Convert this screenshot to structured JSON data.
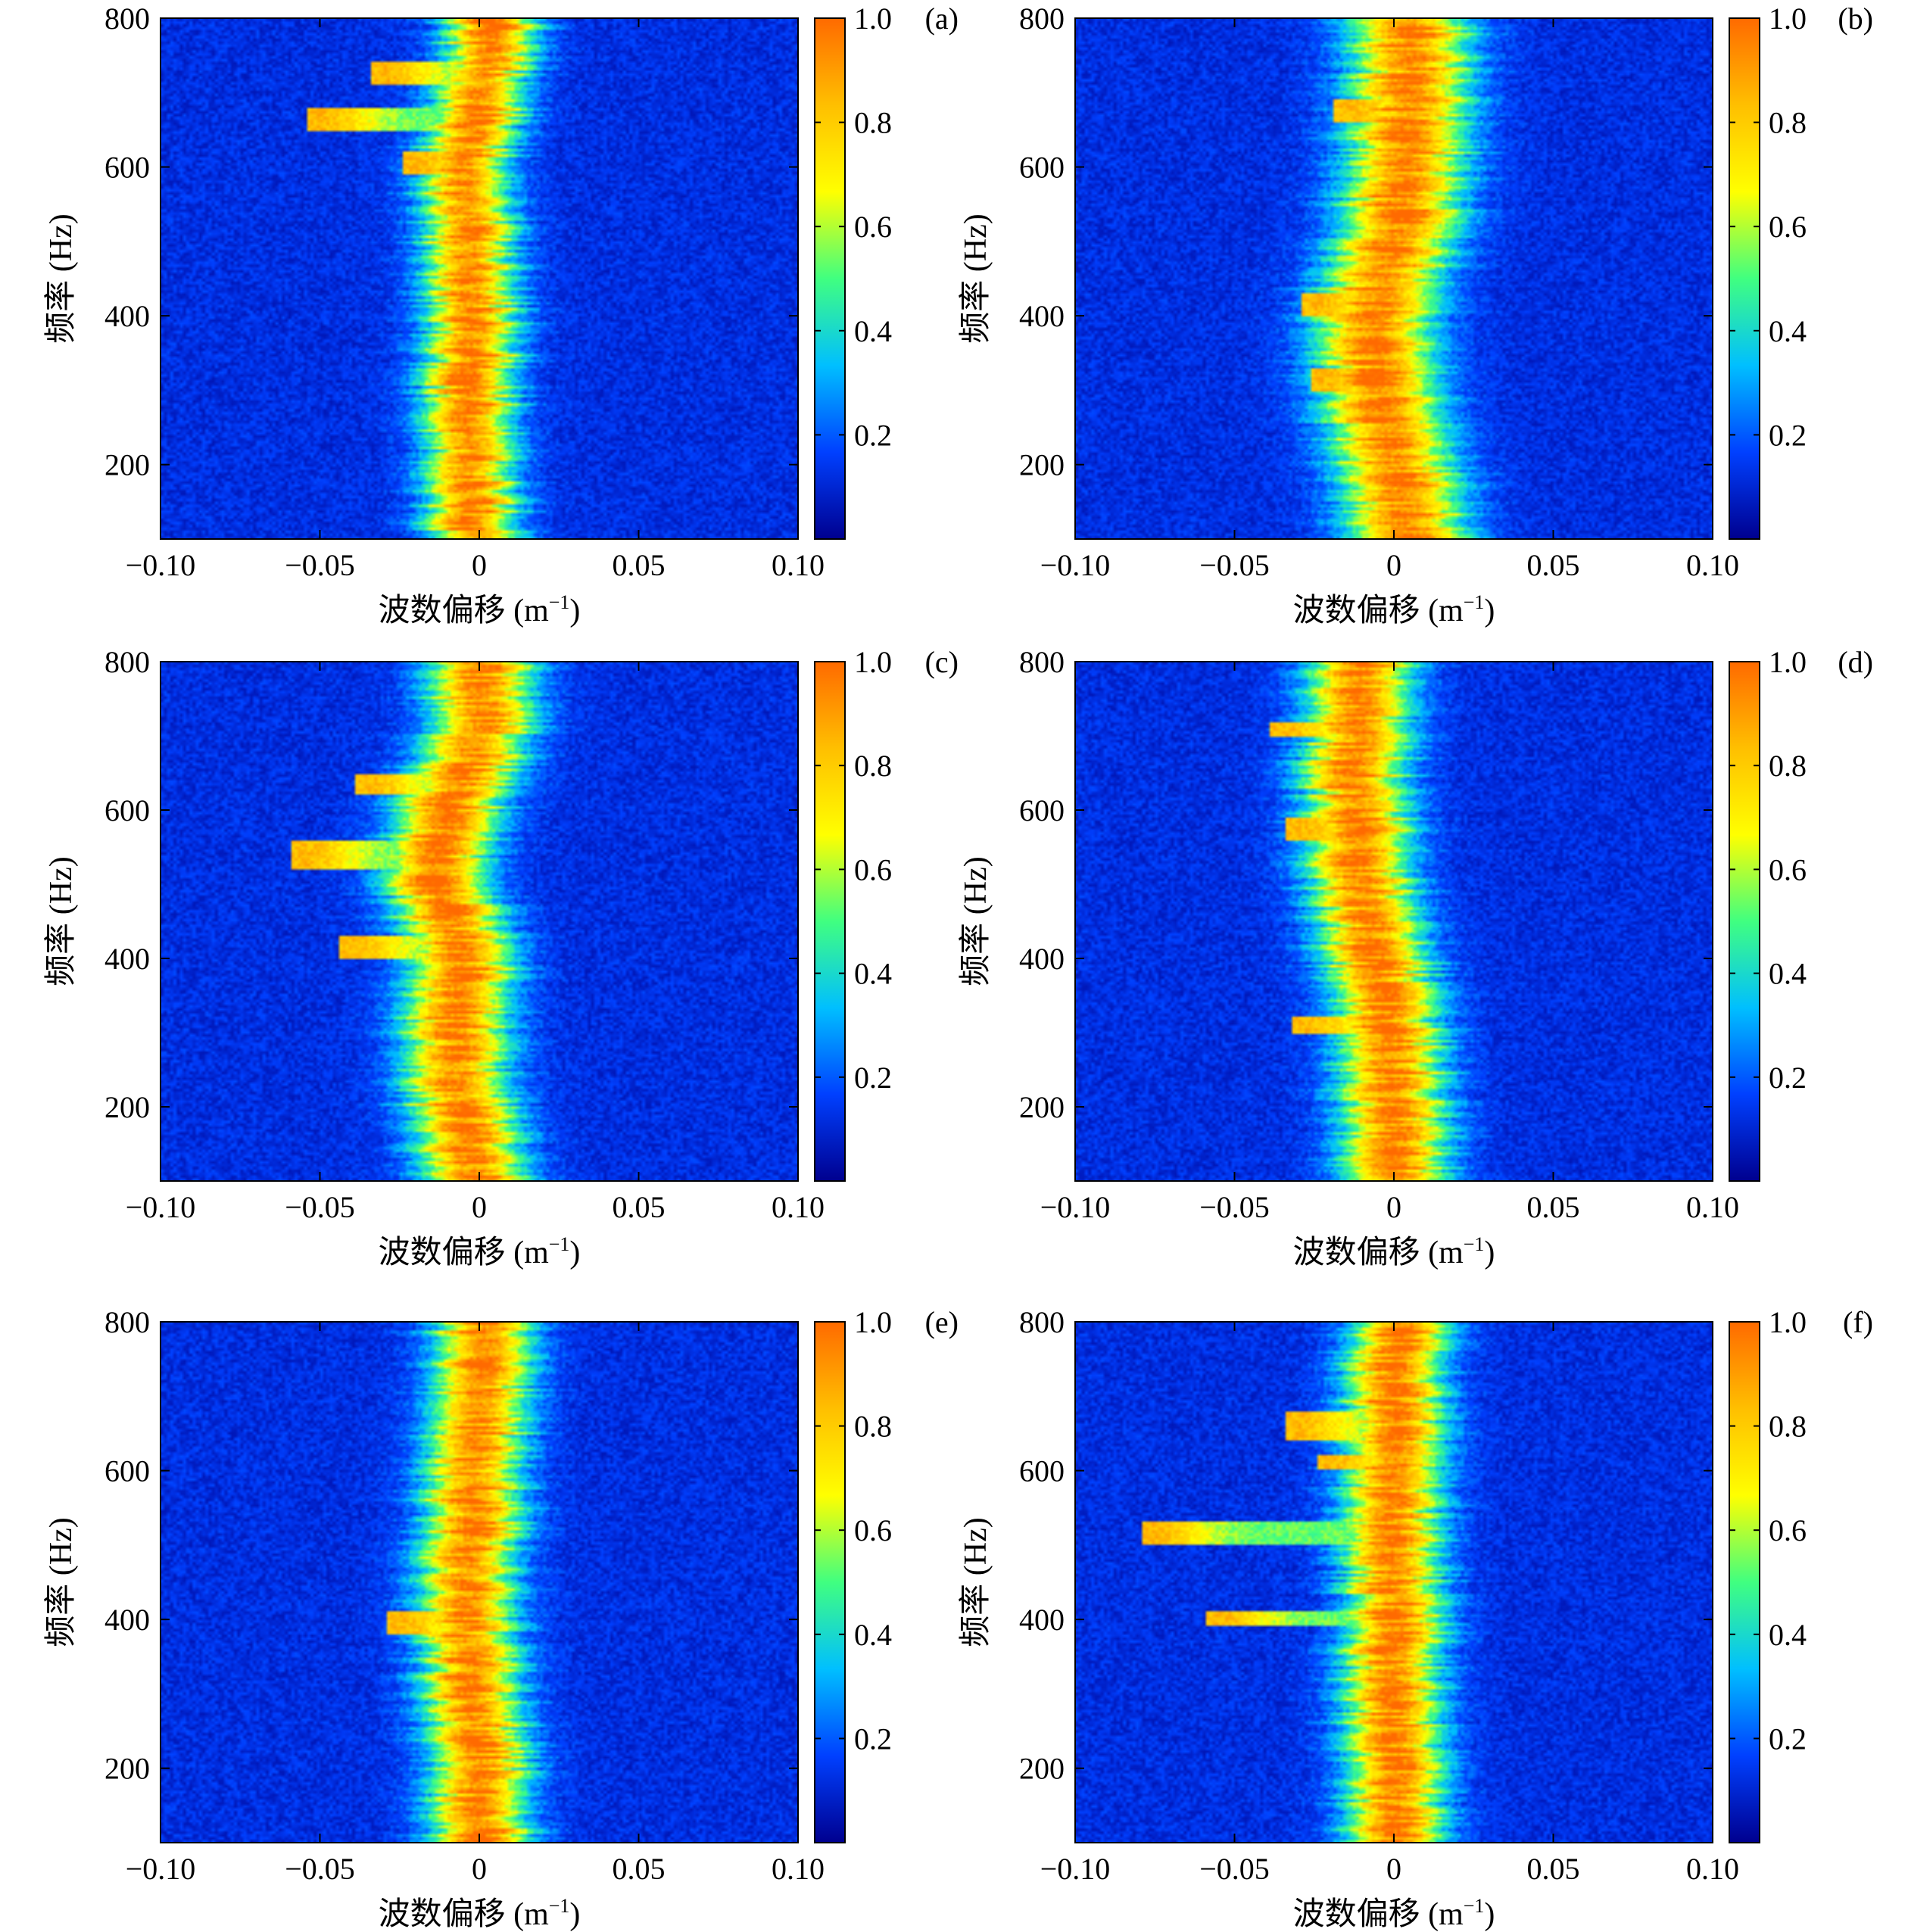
{
  "figure": {
    "colormap": [
      "#00008f",
      "#0040ff",
      "#00bfff",
      "#40ff80",
      "#ffff00",
      "#ffbf00",
      "#ff6a00"
    ],
    "frame_color": "#000000"
  },
  "chart_data": [
    {
      "type": "heatmap",
      "panel_label": "(a)",
      "xlabel": "波数偏移 (m",
      "xlabel_sup": "−1",
      "xlabel_tail": ")",
      "ylabel": "频率 (Hz)",
      "xlim": [
        -0.1,
        0.1
      ],
      "ylim": [
        100,
        800
      ],
      "xticks": [
        -0.1,
        -0.05,
        0,
        0.05,
        0.1
      ],
      "xtick_labels": [
        "−0.10",
        "−0.05",
        "0",
        "0.05",
        "0.10"
      ],
      "yticks": [
        200,
        400,
        600,
        800
      ],
      "ytick_labels": [
        "200",
        "400",
        "600",
        "800"
      ],
      "colorbar": {
        "range": [
          0,
          1.0
        ],
        "ticks": [
          0.2,
          0.4,
          0.6,
          0.8,
          1.0
        ],
        "tick_labels": [
          "0.2",
          "0.4",
          "0.6",
          "0.8",
          "1.0"
        ]
      },
      "ridge": [
        [
          100,
          -0.002
        ],
        [
          200,
          -0.003
        ],
        [
          300,
          -0.003
        ],
        [
          400,
          -0.002
        ],
        [
          500,
          -0.004
        ],
        [
          600,
          -0.005
        ],
        [
          700,
          0.0
        ],
        [
          800,
          0.004
        ]
      ],
      "ridge_halfwidth": 0.012,
      "branches": [
        [
          710,
          740,
          -0.03
        ],
        [
          650,
          680,
          -0.05
        ],
        [
          590,
          620,
          -0.02
        ]
      ]
    },
    {
      "type": "heatmap",
      "panel_label": "(b)",
      "xlabel": "波数偏移 (m",
      "xlabel_sup": "−1",
      "xlabel_tail": ")",
      "ylabel": "频率 (Hz)",
      "xlim": [
        -0.1,
        0.1
      ],
      "ylim": [
        100,
        800
      ],
      "xticks": [
        -0.1,
        -0.05,
        0,
        0.05,
        0.1
      ],
      "xtick_labels": [
        "−0.10",
        "−0.05",
        "0",
        "0.05",
        "0.10"
      ],
      "yticks": [
        200,
        400,
        600,
        800
      ],
      "ytick_labels": [
        "200",
        "400",
        "600",
        "800"
      ],
      "colorbar": {
        "range": [
          0,
          1.0
        ],
        "ticks": [
          0.2,
          0.4,
          0.6,
          0.8,
          1.0
        ],
        "tick_labels": [
          "0.2",
          "0.4",
          "0.6",
          "0.8",
          "1.0"
        ]
      },
      "ridge": [
        [
          100,
          0.004
        ],
        [
          200,
          0.0
        ],
        [
          300,
          -0.005
        ],
        [
          400,
          -0.006
        ],
        [
          500,
          0.0
        ],
        [
          600,
          0.004
        ],
        [
          700,
          0.005
        ],
        [
          800,
          0.005
        ]
      ],
      "ridge_halfwidth": 0.016,
      "branches": [
        [
          400,
          430,
          -0.025
        ],
        [
          300,
          330,
          -0.022
        ],
        [
          660,
          690,
          -0.015
        ]
      ]
    },
    {
      "type": "heatmap",
      "panel_label": "(c)",
      "xlabel": "波数偏移 (m",
      "xlabel_sup": "−1",
      "xlabel_tail": ")",
      "ylabel": "频率 (Hz)",
      "xlim": [
        -0.1,
        0.1
      ],
      "ylim": [
        100,
        800
      ],
      "xticks": [
        -0.1,
        -0.05,
        0,
        0.05,
        0.1
      ],
      "xtick_labels": [
        "−0.10",
        "−0.05",
        "0",
        "0.05",
        "0.10"
      ],
      "yticks": [
        200,
        400,
        600,
        800
      ],
      "ytick_labels": [
        "200",
        "400",
        "600",
        "800"
      ],
      "colorbar": {
        "range": [
          0,
          1.0
        ],
        "ticks": [
          0.2,
          0.4,
          0.6,
          0.8,
          1.0
        ],
        "tick_labels": [
          "0.2",
          "0.4",
          "0.6",
          "0.8",
          "1.0"
        ]
      },
      "ridge": [
        [
          100,
          -0.001
        ],
        [
          200,
          -0.006
        ],
        [
          300,
          -0.008
        ],
        [
          400,
          -0.004
        ],
        [
          500,
          -0.014
        ],
        [
          600,
          -0.01
        ],
        [
          700,
          0.0
        ],
        [
          800,
          0.0
        ]
      ],
      "ridge_halfwidth": 0.014,
      "branches": [
        [
          520,
          560,
          -0.055
        ],
        [
          400,
          430,
          -0.04
        ],
        [
          620,
          650,
          -0.035
        ]
      ]
    },
    {
      "type": "heatmap",
      "panel_label": "(d)",
      "xlabel": "波数偏移 (m",
      "xlabel_sup": "−1",
      "xlabel_tail": ")",
      "ylabel": "频率 (Hz)",
      "xlim": [
        -0.1,
        0.1
      ],
      "ylim": [
        100,
        800
      ],
      "xticks": [
        -0.1,
        -0.05,
        0,
        0.05,
        0.1
      ],
      "xtick_labels": [
        "−0.10",
        "−0.05",
        "0",
        "0.05",
        "0.10"
      ],
      "yticks": [
        200,
        400,
        600,
        800
      ],
      "ytick_labels": [
        "200",
        "400",
        "600",
        "800"
      ],
      "colorbar": {
        "range": [
          0,
          1.0
        ],
        "ticks": [
          0.2,
          0.4,
          0.6,
          0.8,
          1.0
        ],
        "tick_labels": [
          "0.2",
          "0.4",
          "0.6",
          "0.8",
          "1.0"
        ]
      },
      "ridge": [
        [
          100,
          0.0
        ],
        [
          200,
          0.0
        ],
        [
          300,
          -0.002
        ],
        [
          400,
          -0.005
        ],
        [
          500,
          -0.01
        ],
        [
          600,
          -0.012
        ],
        [
          700,
          -0.012
        ],
        [
          800,
          -0.01
        ]
      ],
      "ridge_halfwidth": 0.014,
      "branches": [
        [
          700,
          720,
          -0.035
        ],
        [
          560,
          590,
          -0.03
        ],
        [
          300,
          320,
          -0.028
        ]
      ]
    },
    {
      "type": "heatmap",
      "panel_label": "(e)",
      "xlabel": "波数偏移 (m",
      "xlabel_sup": "−1",
      "xlabel_tail": ")",
      "ylabel": "频率 (Hz)",
      "xlim": [
        -0.1,
        0.1
      ],
      "ylim": [
        100,
        800
      ],
      "xticks": [
        -0.1,
        -0.05,
        0,
        0.05,
        0.1
      ],
      "xtick_labels": [
        "−0.10",
        "−0.05",
        "0",
        "0.05",
        "0.10"
      ],
      "yticks": [
        200,
        400,
        600,
        800
      ],
      "ytick_labels": [
        "200",
        "400",
        "600",
        "800"
      ],
      "colorbar": {
        "range": [
          0,
          1.0
        ],
        "ticks": [
          0.2,
          0.4,
          0.6,
          0.8,
          1.0
        ],
        "tick_labels": [
          "0.2",
          "0.4",
          "0.6",
          "0.8",
          "1.0"
        ]
      },
      "ridge": [
        [
          100,
          0.0
        ],
        [
          200,
          0.0
        ],
        [
          300,
          -0.002
        ],
        [
          400,
          -0.004
        ],
        [
          500,
          -0.003
        ],
        [
          600,
          -0.002
        ],
        [
          700,
          0.0
        ],
        [
          800,
          0.001
        ]
      ],
      "ridge_halfwidth": 0.013,
      "branches": [
        [
          380,
          410,
          -0.025
        ]
      ]
    },
    {
      "type": "heatmap",
      "panel_label": "(f)",
      "xlabel": "波数偏移 (m",
      "xlabel_sup": "−1",
      "xlabel_tail": ")",
      "ylabel": "频率 (Hz)",
      "xlim": [
        -0.1,
        0.1
      ],
      "ylim": [
        100,
        800
      ],
      "xticks": [
        -0.1,
        -0.05,
        0,
        0.05,
        0.1
      ],
      "xtick_labels": [
        "−0.10",
        "−0.05",
        "0",
        "0.05",
        "0.10"
      ],
      "yticks": [
        200,
        400,
        600,
        800
      ],
      "ytick_labels": [
        "200",
        "400",
        "600",
        "800"
      ],
      "colorbar": {
        "range": [
          0,
          1.0
        ],
        "ticks": [
          0.2,
          0.4,
          0.6,
          0.8,
          1.0
        ],
        "tick_labels": [
          "0.2",
          "0.4",
          "0.6",
          "0.8",
          "1.0"
        ]
      },
      "ridge": [
        [
          100,
          0.0
        ],
        [
          200,
          0.0
        ],
        [
          300,
          -0.001
        ],
        [
          400,
          0.0
        ],
        [
          500,
          -0.001
        ],
        [
          600,
          0.0
        ],
        [
          700,
          0.0
        ],
        [
          800,
          0.002
        ]
      ],
      "ridge_halfwidth": 0.013,
      "branches": [
        [
          500,
          530,
          -0.075
        ],
        [
          390,
          410,
          -0.055
        ],
        [
          640,
          680,
          -0.03
        ],
        [
          600,
          620,
          -0.02
        ]
      ]
    }
  ]
}
